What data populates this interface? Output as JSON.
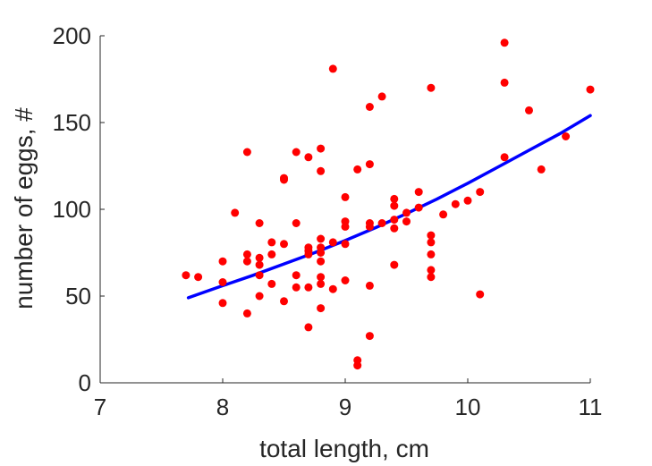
{
  "chart_data": {
    "type": "scatter",
    "title": "",
    "xlabel": "total length, cm",
    "ylabel": "number of eggs, #",
    "xlim": [
      7,
      11
    ],
    "ylim": [
      0,
      200
    ],
    "xticks": [
      7,
      8,
      9,
      10,
      11
    ],
    "yticks": [
      0,
      50,
      100,
      150,
      200
    ],
    "grid": false,
    "legend": "none",
    "points_color": "#ff0000",
    "fit_color": "#0000ff",
    "series": [
      {
        "kind": "scatter",
        "points": [
          [
            7.7,
            62
          ],
          [
            7.8,
            61
          ],
          [
            8.0,
            70
          ],
          [
            8.0,
            58
          ],
          [
            8.0,
            46
          ],
          [
            8.1,
            98
          ],
          [
            8.2,
            133
          ],
          [
            8.2,
            74
          ],
          [
            8.2,
            70
          ],
          [
            8.2,
            40
          ],
          [
            8.3,
            92
          ],
          [
            8.3,
            72
          ],
          [
            8.3,
            68
          ],
          [
            8.3,
            62
          ],
          [
            8.3,
            50
          ],
          [
            8.4,
            81
          ],
          [
            8.4,
            74
          ],
          [
            8.4,
            57
          ],
          [
            8.5,
            118
          ],
          [
            8.5,
            117
          ],
          [
            8.5,
            80
          ],
          [
            8.5,
            47
          ],
          [
            8.6,
            133
          ],
          [
            8.6,
            92
          ],
          [
            8.6,
            62
          ],
          [
            8.6,
            55
          ],
          [
            8.7,
            130
          ],
          [
            8.7,
            78
          ],
          [
            8.7,
            76
          ],
          [
            8.7,
            74
          ],
          [
            8.7,
            55
          ],
          [
            8.7,
            32
          ],
          [
            8.8,
            135
          ],
          [
            8.8,
            122
          ],
          [
            8.8,
            83
          ],
          [
            8.8,
            78
          ],
          [
            8.8,
            75
          ],
          [
            8.8,
            70
          ],
          [
            8.8,
            61
          ],
          [
            8.8,
            57
          ],
          [
            8.8,
            43
          ],
          [
            8.9,
            181
          ],
          [
            8.9,
            81
          ],
          [
            8.9,
            54
          ],
          [
            9.0,
            107
          ],
          [
            9.0,
            93
          ],
          [
            9.0,
            90
          ],
          [
            9.0,
            80
          ],
          [
            9.0,
            59
          ],
          [
            9.1,
            123
          ],
          [
            9.1,
            13
          ],
          [
            9.1,
            10
          ],
          [
            9.2,
            159
          ],
          [
            9.2,
            126
          ],
          [
            9.2,
            92
          ],
          [
            9.2,
            90
          ],
          [
            9.2,
            56
          ],
          [
            9.2,
            27
          ],
          [
            9.3,
            165
          ],
          [
            9.3,
            92
          ],
          [
            9.4,
            106
          ],
          [
            9.4,
            102
          ],
          [
            9.4,
            94
          ],
          [
            9.4,
            89
          ],
          [
            9.4,
            68
          ],
          [
            9.5,
            98
          ],
          [
            9.5,
            93
          ],
          [
            9.6,
            110
          ],
          [
            9.6,
            101
          ],
          [
            9.7,
            170
          ],
          [
            9.7,
            85
          ],
          [
            9.7,
            81
          ],
          [
            9.7,
            74
          ],
          [
            9.7,
            65
          ],
          [
            9.7,
            61
          ],
          [
            9.8,
            97
          ],
          [
            9.9,
            103
          ],
          [
            10.0,
            105
          ],
          [
            10.1,
            110
          ],
          [
            10.1,
            51
          ],
          [
            10.3,
            196
          ],
          [
            10.3,
            173
          ],
          [
            10.3,
            130
          ],
          [
            10.5,
            157
          ],
          [
            10.6,
            123
          ],
          [
            10.8,
            142
          ],
          [
            11.0,
            169
          ]
        ]
      },
      {
        "kind": "line",
        "points": [
          [
            7.72,
            49
          ],
          [
            8.0,
            56
          ],
          [
            8.25,
            62
          ],
          [
            8.5,
            68.5
          ],
          [
            8.75,
            75
          ],
          [
            9.0,
            82
          ],
          [
            9.25,
            89.5
          ],
          [
            9.5,
            97.5
          ],
          [
            9.75,
            106
          ],
          [
            10.0,
            115
          ],
          [
            10.25,
            124.5
          ],
          [
            10.5,
            134
          ],
          [
            10.75,
            143.5
          ],
          [
            11.0,
            154
          ]
        ]
      }
    ]
  }
}
